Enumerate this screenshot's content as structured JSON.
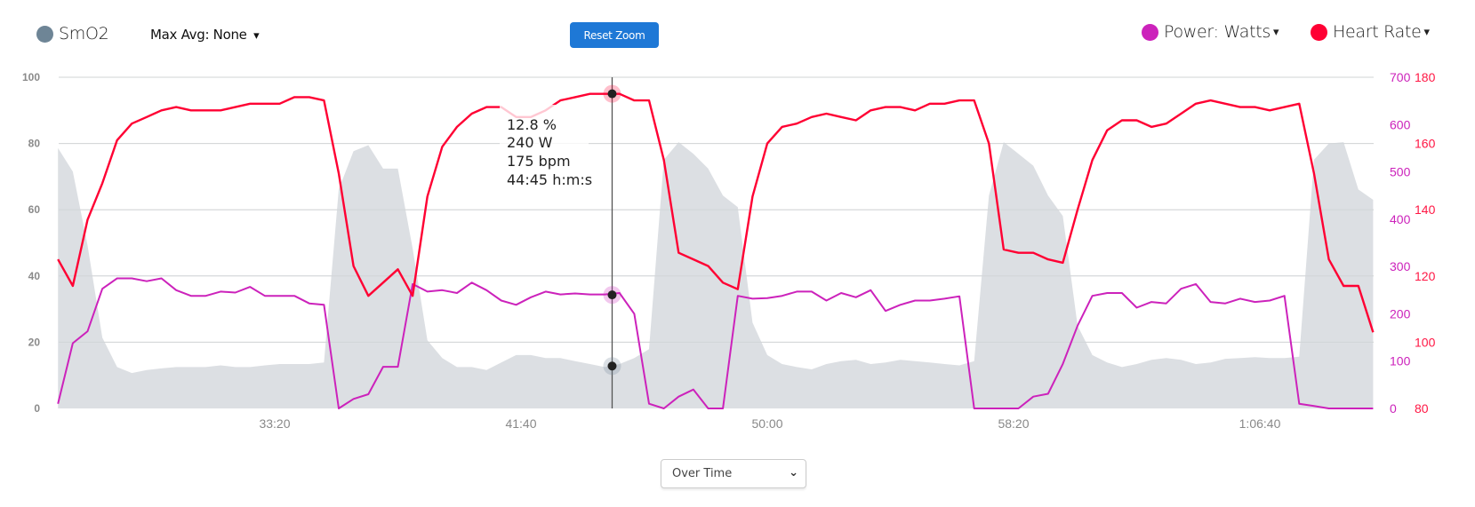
{
  "legend": {
    "smo2": {
      "label": "SmO2",
      "color": "#6e8596"
    },
    "max_avg": {
      "label": "Max Avg: None",
      "caret": "▾"
    },
    "power": {
      "label": "Power: Watts",
      "caret": "▾",
      "color": "#cc22bb"
    },
    "heart_rate": {
      "label": "Heart Rate",
      "caret": "▾",
      "color": "#ff0033"
    }
  },
  "toolbar": {
    "reset_zoom_label": "Reset Zoom"
  },
  "mode_select": {
    "value": "Over Time",
    "icon": "chevron-down-icon"
  },
  "tooltip": {
    "time": "44:45",
    "lines": [
      "12.8 %",
      "240 W",
      "175 bpm",
      "44:45 h:m:s"
    ],
    "smo2": 12.8,
    "power": 240,
    "heart_rate": 175
  },
  "chart_data": {
    "type": "line",
    "x_ticks": [
      "33:20",
      "41:40",
      "50:00",
      "58:20",
      "1:06:40"
    ],
    "x_range": [
      "26:00",
      "1:10:30"
    ],
    "grid": true,
    "axes": {
      "left": {
        "ticks": [
          "0",
          "20",
          "40",
          "60",
          "80",
          "100"
        ],
        "range": [
          0,
          100
        ],
        "color": "#8a8a8a"
      },
      "right_power": {
        "ticks": [
          "0",
          "100",
          "200",
          "300",
          "400",
          "500",
          "600",
          "700"
        ],
        "range": [
          0,
          700
        ],
        "color": "#cc22bb"
      },
      "right_hr": {
        "ticks": [
          "80",
          "100",
          "120",
          "140",
          "160",
          "180"
        ],
        "range": [
          80,
          180
        ],
        "color": "#ff0033"
      }
    },
    "x": [
      "26:00",
      "26:30",
      "27:00",
      "27:30",
      "28:00",
      "28:30",
      "29:00",
      "29:30",
      "30:00",
      "30:30",
      "31:00",
      "31:30",
      "32:00",
      "32:30",
      "33:00",
      "33:30",
      "34:00",
      "34:30",
      "35:00",
      "35:30",
      "36:00",
      "36:30",
      "37:00",
      "37:30",
      "38:00",
      "38:30",
      "39:00",
      "39:30",
      "40:00",
      "40:30",
      "41:00",
      "41:30",
      "42:00",
      "42:30",
      "43:00",
      "43:30",
      "44:00",
      "44:30",
      "45:00",
      "45:30",
      "46:00",
      "46:30",
      "47:00",
      "47:30",
      "48:00",
      "48:30",
      "49:00",
      "49:30",
      "50:00",
      "50:30",
      "51:00",
      "51:30",
      "52:00",
      "52:30",
      "53:00",
      "53:30",
      "54:00",
      "54:30",
      "55:00",
      "55:30",
      "56:00",
      "56:30",
      "57:00",
      "57:30",
      "58:00",
      "58:30",
      "59:00",
      "59:30",
      "1:00:00",
      "1:00:30",
      "1:01:00",
      "1:01:30",
      "1:02:00",
      "1:02:30",
      "1:03:00",
      "1:03:30",
      "1:04:00",
      "1:04:30",
      "1:05:00",
      "1:05:30",
      "1:06:00",
      "1:06:30",
      "1:07:00",
      "1:07:30",
      "1:08:00",
      "1:08:30",
      "1:09:00",
      "1:09:30",
      "1:10:00",
      "1:10:30"
    ],
    "series": [
      {
        "name": "SmO2",
        "type": "area",
        "axis": "left",
        "color": "#dcdfe3",
        "values": [
          78.6,
          71.5,
          49.2,
          21.4,
          12.5,
          10.7,
          11.6,
          12.1,
          12.5,
          12.5,
          12.5,
          13,
          12.5,
          12.5,
          13,
          13.4,
          13.4,
          13.4,
          13.9,
          66.1,
          77.7,
          79.5,
          72.4,
          72.4,
          48.3,
          20.6,
          15.2,
          12.5,
          12.5,
          11.6,
          13.9,
          16.1,
          16.1,
          15.2,
          15.2,
          14.3,
          13.4,
          12.5,
          13.4,
          15.2,
          17.9,
          75.1,
          80.4,
          76.9,
          72.4,
          64.3,
          60.8,
          25.9,
          16.1,
          13.4,
          12.5,
          11.8,
          13.4,
          14.3,
          14.7,
          13.4,
          13.9,
          14.7,
          14.3,
          13.9,
          13.4,
          13,
          14.3,
          64.3,
          80.4,
          76.9,
          73.3,
          64.3,
          58.1,
          25,
          16.1,
          13.9,
          12.5,
          13.4,
          14.7,
          15.2,
          14.7,
          13.4,
          13.9,
          15,
          15.2,
          15.5,
          15.2,
          15.2,
          15.6,
          75.1,
          80,
          80.4,
          66.1,
          63
        ]
      },
      {
        "name": "Power: Watts",
        "type": "line",
        "axis": "right_power",
        "color": "#cc22bb",
        "values": [
          10,
          138,
          163,
          253,
          275,
          275,
          269,
          275,
          250,
          238,
          238,
          247,
          245,
          257,
          238,
          238,
          238,
          222,
          219,
          0,
          20,
          30,
          88,
          88,
          263,
          247,
          250,
          244,
          266,
          250,
          228,
          219,
          235,
          247,
          241,
          243,
          241,
          241,
          244,
          200,
          10,
          0,
          25,
          40,
          0,
          0,
          238,
          232,
          233,
          238,
          247,
          247,
          228,
          244,
          235,
          250,
          206,
          219,
          228,
          228,
          232,
          237,
          0,
          0,
          0,
          0,
          25,
          31,
          94,
          175,
          238,
          244,
          244,
          213,
          225,
          222,
          253,
          263,
          225,
          222,
          232,
          225,
          228,
          238,
          10,
          5,
          0,
          0,
          0,
          0
        ]
      },
      {
        "name": "Heart Rate",
        "type": "line",
        "axis": "right_hr",
        "color": "#ff0033",
        "values": [
          125,
          117,
          137,
          148,
          161,
          166,
          168,
          170,
          171,
          170,
          170,
          170,
          171,
          172,
          172,
          172,
          174,
          174,
          173,
          151,
          123,
          114,
          118,
          122,
          114,
          144,
          159,
          165,
          169,
          171,
          171,
          168,
          168,
          170,
          173,
          174,
          175,
          175,
          175,
          173,
          173,
          155,
          127,
          125,
          123,
          118,
          116,
          144,
          160,
          165,
          166,
          168,
          169,
          168,
          167,
          170,
          171,
          171,
          170,
          172,
          172,
          173,
          173,
          160,
          128,
          127,
          127,
          125,
          124,
          140,
          155,
          164,
          167,
          167,
          165,
          166,
          169,
          172,
          173,
          172,
          171,
          171,
          170,
          171,
          172,
          151,
          125,
          117,
          117,
          103
        ]
      }
    ]
  }
}
